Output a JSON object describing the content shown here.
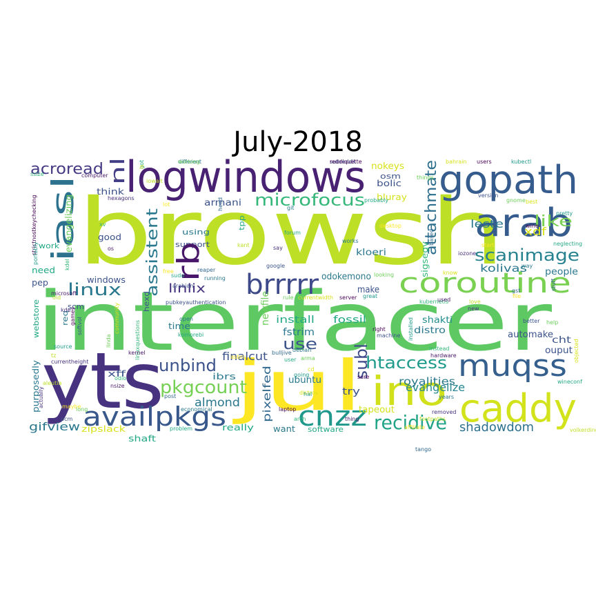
{
  "title": "July-2018",
  "words": [
    {
      "text": "browsh",
      "color": "#bddf26",
      "rotate": 0
    },
    {
      "text": "interfacer",
      "color": "#5ec962",
      "rotate": 0
    },
    {
      "text": "yts",
      "color": "#46327e",
      "rotate": 0
    },
    {
      "text": "jul",
      "color": "#fde725",
      "rotate": 0
    },
    {
      "text": "logwindows",
      "color": "#482173",
      "rotate": 0
    },
    {
      "text": "gopath",
      "color": "#365c8d",
      "rotate": 0
    },
    {
      "text": "arab",
      "color": "#365c8d",
      "rotate": 0
    },
    {
      "text": "ino",
      "color": "#d0e11c",
      "rotate": 0
    },
    {
      "text": "coroutine",
      "color": "#7ad151",
      "rotate": 0
    },
    {
      "text": "caddy",
      "color": "#d2e21b",
      "rotate": 0
    },
    {
      "text": "muqss",
      "color": "#355f8d",
      "rotate": 0
    },
    {
      "text": "iasl",
      "color": "#2c728e",
      "rotate": -90
    },
    {
      "text": "availpkgs",
      "color": "#38588c",
      "rotate": 0
    },
    {
      "text": "cnzz",
      "color": "#1f988b",
      "rotate": 0
    },
    {
      "text": "brrrrr",
      "color": "#3e4989",
      "rotate": 0
    },
    {
      "text": "microfocus",
      "color": "#35b779",
      "rotate": 0
    },
    {
      "text": "pkgcount",
      "color": "#75d054",
      "rotate": 0
    },
    {
      "text": "recidive",
      "color": "#20a386",
      "rotate": 0
    },
    {
      "text": "scanimage",
      "color": "#26828e",
      "rotate": 0
    },
    {
      "text": "htaccess",
      "color": "#1e9b8a",
      "rotate": 0
    },
    {
      "text": "attachmate",
      "color": "#2e6f8e",
      "rotate": -90
    },
    {
      "text": "assistent",
      "color": "#2a788e",
      "rotate": -90
    },
    {
      "text": "unbind",
      "color": "#3b528b",
      "rotate": 0
    },
    {
      "text": "linux",
      "color": "#2a788e",
      "rotate": 0
    },
    {
      "text": "acroread",
      "color": "#443983",
      "rotate": 0
    },
    {
      "text": "rb",
      "color": "#481769",
      "rotate": -90
    },
    {
      "text": "nl",
      "color": "#433e85",
      "rotate": -90
    },
    {
      "text": "like",
      "color": "#7ad151",
      "rotate": 0
    },
    {
      "text": "subl",
      "color": "#3e4a89",
      "rotate": -90
    },
    {
      "text": "shadowdom",
      "color": "#2d718e",
      "rotate": 0
    },
    {
      "text": "evangelize",
      "color": "#24868e",
      "rotate": 0
    },
    {
      "text": "use",
      "color": "#3b528b",
      "rotate": 0
    },
    {
      "text": "almond",
      "color": "#2a788e",
      "rotate": 0
    },
    {
      "text": "royalities",
      "color": "#2a788e",
      "rotate": 0
    },
    {
      "text": "gifview",
      "color": "#2a788e",
      "rotate": 0
    },
    {
      "text": "pixelfed",
      "color": "#31688e",
      "rotate": -90
    },
    {
      "text": "leste",
      "color": "#2a788e",
      "rotate": 0
    },
    {
      "text": "xdf",
      "color": "#d8e219",
      "rotate": 0
    },
    {
      "text": "kolivas",
      "color": "#2a788e",
      "rotate": 0
    },
    {
      "text": "people",
      "color": "#2a788e",
      "rotate": 0
    },
    {
      "text": "linlix",
      "color": "#46337f",
      "rotate": 0
    },
    {
      "text": "finalcut",
      "color": "#3b528b",
      "rotate": 0
    },
    {
      "text": "automake",
      "color": "#3b528b",
      "rotate": 0
    },
    {
      "text": "install",
      "color": "#22a884",
      "rotate": 0
    },
    {
      "text": "fossil",
      "color": "#22a884",
      "rotate": 0
    },
    {
      "text": "fstrim",
      "color": "#2a788e",
      "rotate": 0
    },
    {
      "text": "distro",
      "color": "#2a788e",
      "rotate": 0
    },
    {
      "text": "shakti",
      "color": "#228d8d",
      "rotate": 0
    },
    {
      "text": "cht",
      "color": "#3b528b",
      "rotate": 0
    },
    {
      "text": "ouput",
      "color": "#3b528b",
      "rotate": 0
    },
    {
      "text": "armani",
      "color": "#3b528b",
      "rotate": 0
    },
    {
      "text": "kloeri",
      "color": "#2a788e",
      "rotate": 0
    },
    {
      "text": "sigsegv",
      "color": "#35b779",
      "rotate": -90
    },
    {
      "text": "bluray",
      "color": "#d2e21b",
      "rotate": 0
    },
    {
      "text": "bolic",
      "color": "#3b528b",
      "rotate": 0
    },
    {
      "text": "osm",
      "color": "#3b528b",
      "rotate": 0
    },
    {
      "text": "nokeys",
      "color": "#d8e219",
      "rotate": 0
    },
    {
      "text": "odokemono",
      "color": "#2a788e",
      "rotate": 0
    },
    {
      "text": "make",
      "color": "#3b528b",
      "rotate": 0
    },
    {
      "text": "newfile",
      "color": "#6ccd5a",
      "rotate": -90
    },
    {
      "text": "tapeout",
      "color": "#d2e21b",
      "rotate": 0
    },
    {
      "text": "ubuntu",
      "color": "#2a788e",
      "rotate": 0
    },
    {
      "text": "try",
      "color": "#3b528b",
      "rotate": 0
    },
    {
      "text": "software",
      "color": "#22a884",
      "rotate": 0
    },
    {
      "text": "want",
      "color": "#2a788e",
      "rotate": 0
    },
    {
      "text": "really",
      "color": "#22a884",
      "rotate": 0
    },
    {
      "text": "shaft",
      "color": "#22a884",
      "rotate": 0
    },
    {
      "text": "zipslack",
      "color": "#d8e219",
      "rotate": 0
    },
    {
      "text": "ibrs",
      "color": "#2a788e",
      "rotate": 0
    },
    {
      "text": "xff",
      "color": "#3b528b",
      "rotate": 0
    },
    {
      "text": "purposedly",
      "color": "#2a788e",
      "rotate": -90
    },
    {
      "text": "webstore",
      "color": "#22a884",
      "rotate": -90
    },
    {
      "text": "scm",
      "color": "#3b528b",
      "rotate": 0
    },
    {
      "text": "windows",
      "color": "#3b528b",
      "rotate": 0
    },
    {
      "text": "pep",
      "color": "#3b528b",
      "rotate": 0
    },
    {
      "text": "need",
      "color": "#22a884",
      "rotate": 0
    },
    {
      "text": "work",
      "color": "#22a884",
      "rotate": 0
    },
    {
      "text": "evangelizing",
      "color": "#6ccd5a",
      "rotate": -90
    },
    {
      "text": "good",
      "color": "#3b528b",
      "rotate": 0
    },
    {
      "text": "using",
      "color": "#2a788e",
      "rotate": 0
    },
    {
      "text": "support",
      "color": "#3b528b",
      "rotate": 0
    },
    {
      "text": "think",
      "color": "#3b528b",
      "rotate": 0
    },
    {
      "text": "tpp",
      "color": "#22a884",
      "rotate": -90
    },
    {
      "text": "time",
      "color": "#2a788e",
      "rotate": 0
    },
    {
      "text": "hexd",
      "color": "#3b528b",
      "rotate": -90
    },
    {
      "text": "req",
      "color": "#2a788e",
      "rotate": -90
    },
    {
      "text": "scm",
      "color": "#2a788e",
      "rotate": 0
    }
  ],
  "small_words": [
    "different",
    "got",
    "subreddit",
    "things",
    "bahrain",
    "users",
    "kubectl",
    "ssize",
    "computer",
    "iowait",
    "hexagons",
    "lot",
    "head",
    "git",
    "probably",
    "version",
    "gnome",
    "best",
    "wine",
    "pretty",
    "xv",
    "os",
    "kant",
    "say",
    "desktop",
    "based",
    "works",
    "forum",
    "google",
    "looking",
    "know",
    "strictnostkeychecking",
    "portably",
    "kdel",
    "microsoft",
    "old",
    "kde",
    "free",
    "reaper",
    "running",
    "sudo",
    "pubkeyauthentication",
    "rule",
    "currentwidth",
    "server",
    "great",
    "kubernetis",
    "used",
    "love",
    "new",
    "file",
    "stuff",
    "open",
    "komorebi",
    "softvol",
    "linda",
    "community",
    "games",
    "source",
    "linuxquestions",
    "kernel",
    "tz",
    "currentheight",
    "asbru",
    "bulljive",
    "debian",
    "user",
    "machine",
    "arma",
    "cd",
    "sure",
    "going",
    "odio",
    "nsize",
    "aleutia",
    "actually",
    "maybe",
    "post",
    "economical",
    "problem",
    "pcm",
    "long",
    "distros",
    "laptop",
    "hal",
    "arch",
    "thing",
    "footpaths",
    "removed",
    "affiliate",
    "tango",
    "years",
    "wineconf",
    "better",
    "help",
    "objected",
    "right",
    "installed",
    "instead",
    "hardware",
    "volkerding",
    "iozone",
    "start",
    "gst",
    "way",
    "neglecting",
    "arabian",
    "working",
    "ls",
    "reddiquette"
  ]
}
